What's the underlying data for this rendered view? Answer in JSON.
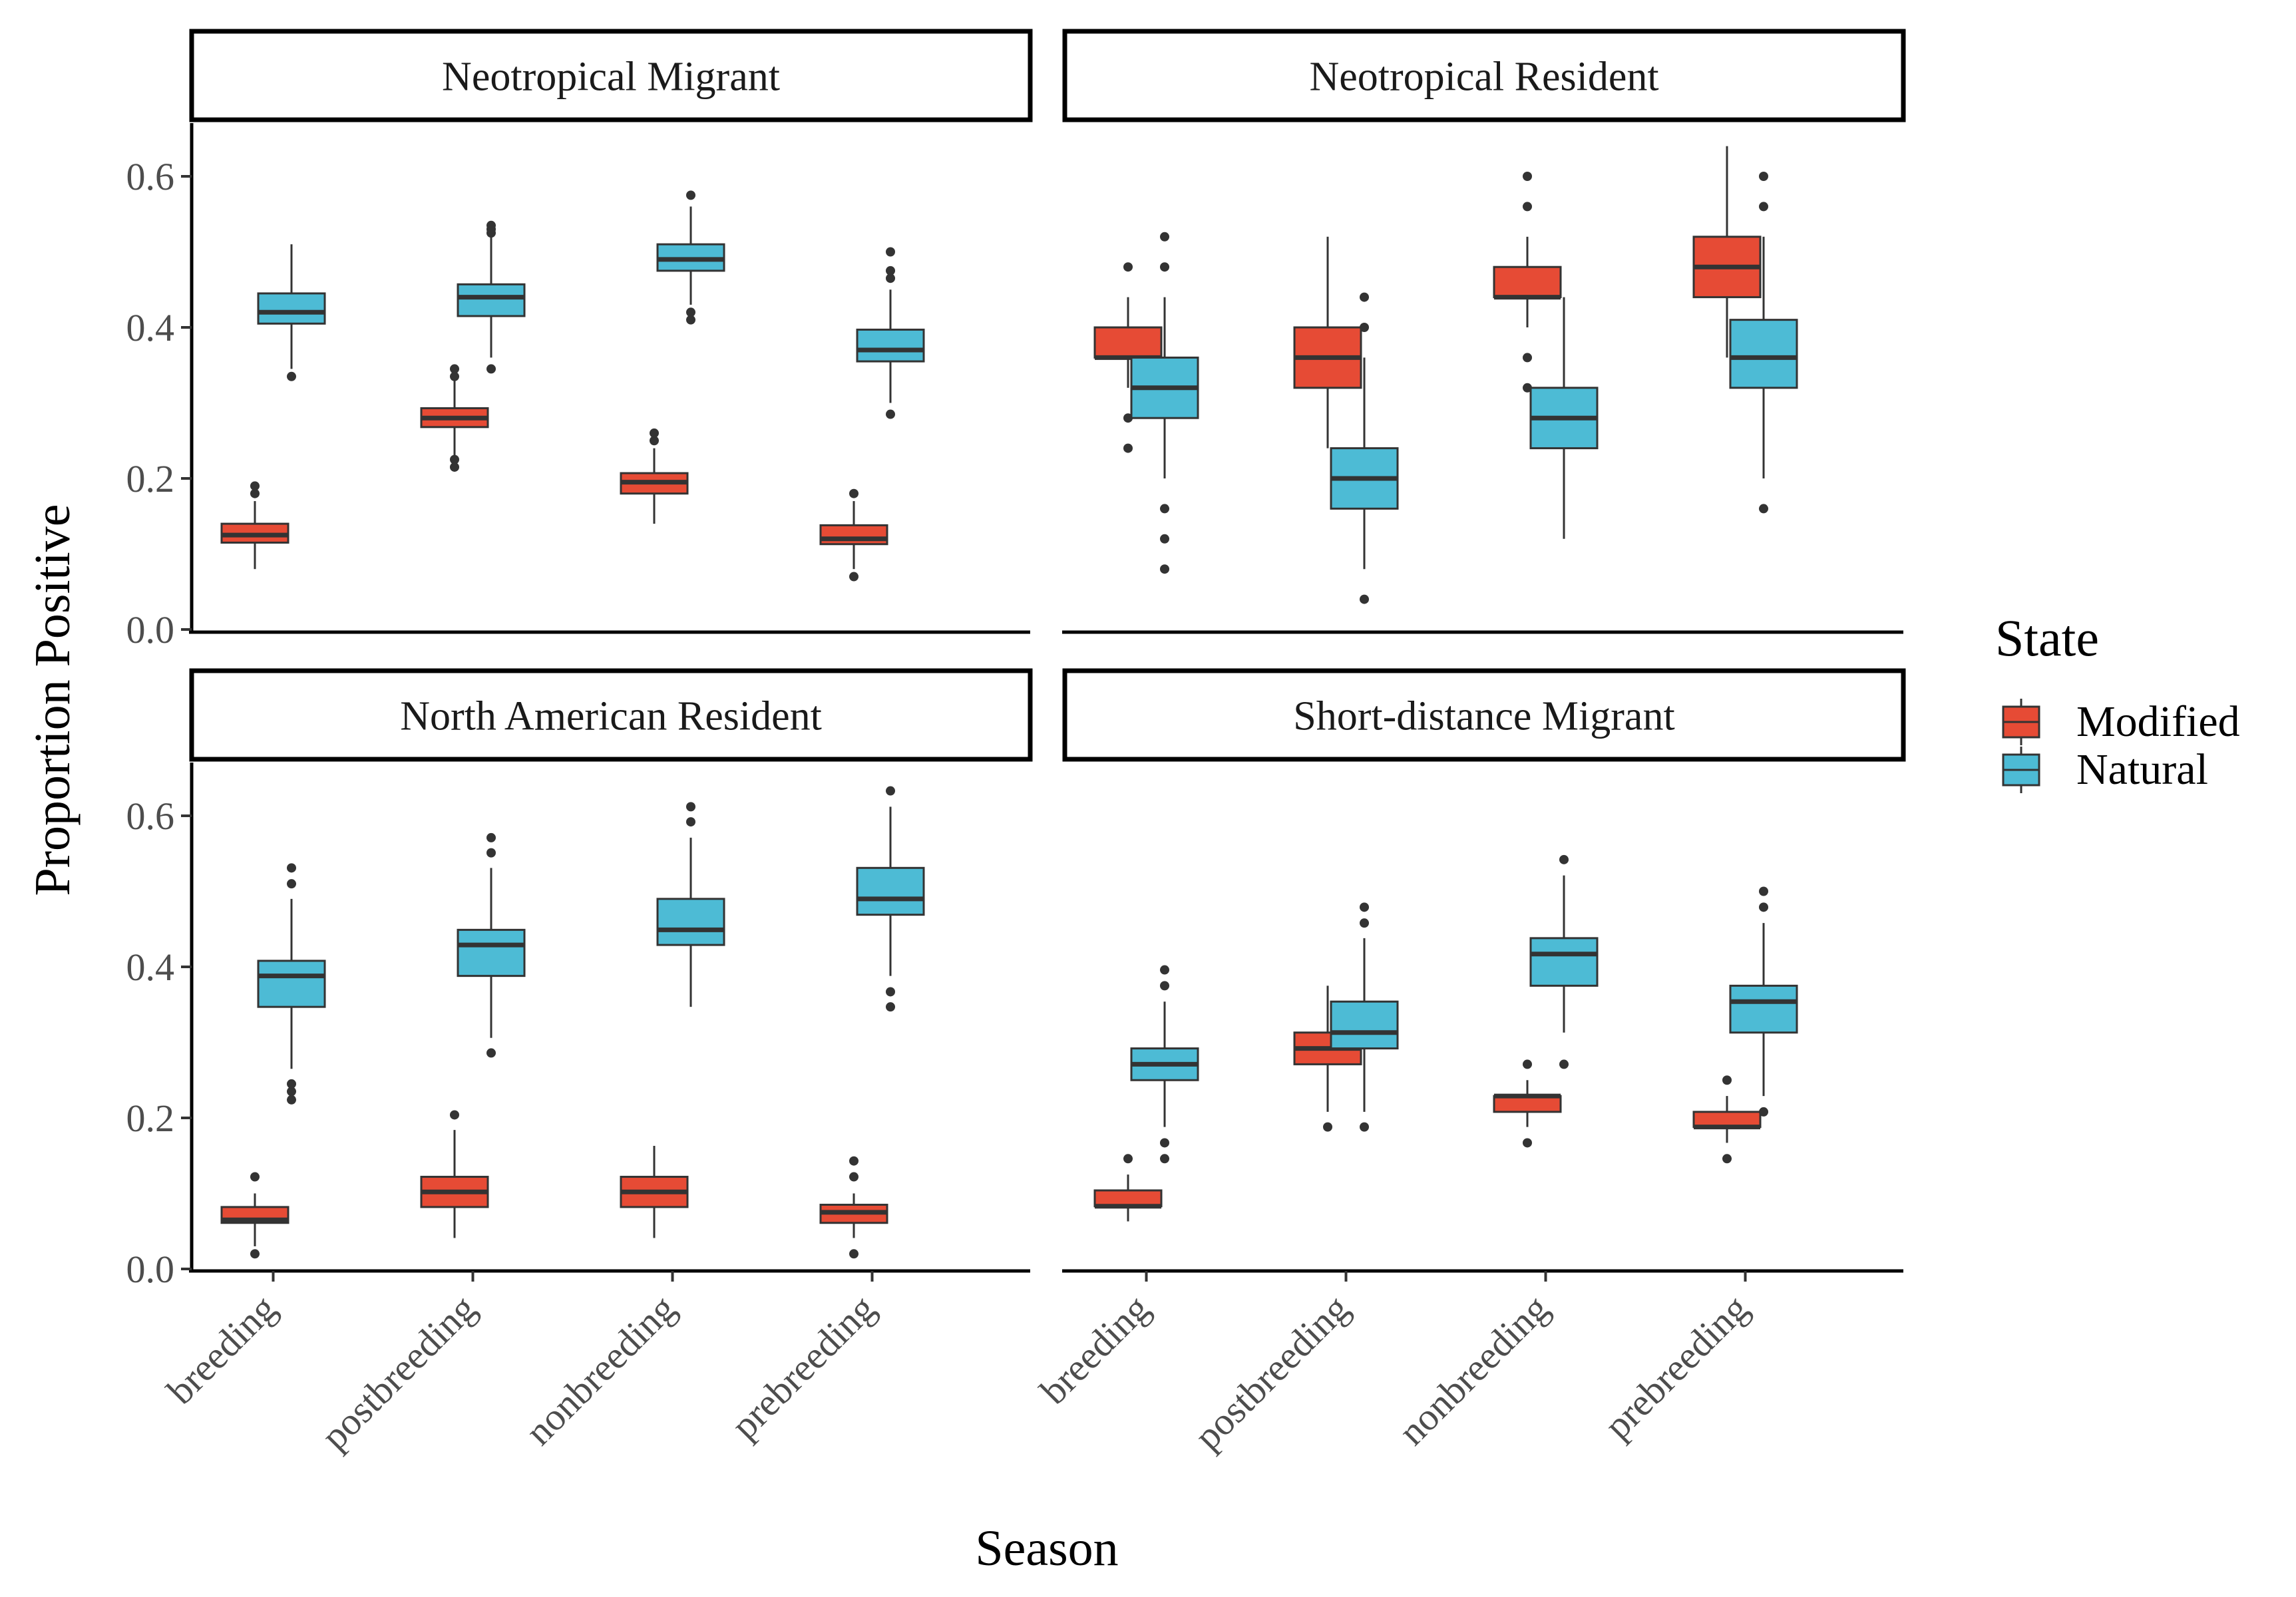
{
  "chart_data": {
    "type": "box",
    "xlabel": "Season",
    "ylabel": "Proportion Positive",
    "ylim": [
      0,
      0.68
    ],
    "yticks": [
      0.0,
      0.2,
      0.4,
      0.6
    ],
    "ytick_labels": [
      "0.0",
      "0.2",
      "0.4",
      "0.6"
    ],
    "categories": [
      "breeding",
      "postbreeding",
      "nonbreeding",
      "prebreeding"
    ],
    "legend": {
      "title": "State",
      "position": "right",
      "items": [
        {
          "label": "Modified",
          "color": "#E64B35"
        },
        {
          "label": "Natural",
          "color": "#4DBBD5"
        }
      ]
    },
    "grid": false,
    "panels": [
      {
        "title": "Neotropical Migrant",
        "boxes": [
          {
            "season": "breeding",
            "state": "Modified",
            "whisker_low": 0.08,
            "q1": 0.115,
            "median": 0.125,
            "q3": 0.14,
            "whisker_high": 0.17,
            "outliers": [
              0.18,
              0.19
            ]
          },
          {
            "season": "breeding",
            "state": "Natural",
            "whisker_low": 0.345,
            "q1": 0.405,
            "median": 0.42,
            "q3": 0.445,
            "whisker_high": 0.51,
            "outliers": [
              0.335
            ]
          },
          {
            "season": "postbreeding",
            "state": "Modified",
            "whisker_low": 0.23,
            "q1": 0.268,
            "median": 0.28,
            "q3": 0.293,
            "whisker_high": 0.33,
            "outliers": [
              0.215,
              0.225,
              0.335,
              0.345
            ]
          },
          {
            "season": "postbreeding",
            "state": "Natural",
            "whisker_low": 0.36,
            "q1": 0.415,
            "median": 0.44,
            "q3": 0.457,
            "whisker_high": 0.52,
            "outliers": [
              0.345,
              0.525,
              0.53,
              0.535
            ]
          },
          {
            "season": "nonbreeding",
            "state": "Modified",
            "whisker_low": 0.14,
            "q1": 0.18,
            "median": 0.195,
            "q3": 0.207,
            "whisker_high": 0.24,
            "outliers": [
              0.25,
              0.26
            ]
          },
          {
            "season": "nonbreeding",
            "state": "Natural",
            "whisker_low": 0.43,
            "q1": 0.475,
            "median": 0.49,
            "q3": 0.51,
            "whisker_high": 0.56,
            "outliers": [
              0.41,
              0.42,
              0.575
            ]
          },
          {
            "season": "prebreeding",
            "state": "Modified",
            "whisker_low": 0.08,
            "q1": 0.113,
            "median": 0.12,
            "q3": 0.138,
            "whisker_high": 0.17,
            "outliers": [
              0.07,
              0.18
            ]
          },
          {
            "season": "prebreeding",
            "state": "Natural",
            "whisker_low": 0.3,
            "q1": 0.355,
            "median": 0.37,
            "q3": 0.397,
            "whisker_high": 0.45,
            "outliers": [
              0.285,
              0.465,
              0.475,
              0.5
            ]
          }
        ]
      },
      {
        "title": "Neotropical Resident",
        "boxes": [
          {
            "season": "breeding",
            "state": "Modified",
            "whisker_low": 0.32,
            "q1": 0.36,
            "median": 0.36,
            "q3": 0.4,
            "whisker_high": 0.44,
            "outliers": [
              0.24,
              0.28,
              0.48
            ]
          },
          {
            "season": "breeding",
            "state": "Natural",
            "whisker_low": 0.2,
            "q1": 0.28,
            "median": 0.32,
            "q3": 0.36,
            "whisker_high": 0.44,
            "outliers": [
              0.08,
              0.12,
              0.16,
              0.48,
              0.52
            ]
          },
          {
            "season": "postbreeding",
            "state": "Modified",
            "whisker_low": 0.24,
            "q1": 0.32,
            "median": 0.36,
            "q3": 0.4,
            "whisker_high": 0.52,
            "outliers": []
          },
          {
            "season": "postbreeding",
            "state": "Natural",
            "whisker_low": 0.08,
            "q1": 0.16,
            "median": 0.2,
            "q3": 0.24,
            "whisker_high": 0.36,
            "outliers": [
              0.04,
              0.4,
              0.44
            ]
          },
          {
            "season": "nonbreeding",
            "state": "Modified",
            "whisker_low": 0.4,
            "q1": 0.44,
            "median": 0.44,
            "q3": 0.48,
            "whisker_high": 0.52,
            "outliers": [
              0.32,
              0.36,
              0.56,
              0.6
            ]
          },
          {
            "season": "nonbreeding",
            "state": "Natural",
            "whisker_low": 0.12,
            "q1": 0.24,
            "median": 0.28,
            "q3": 0.32,
            "whisker_high": 0.44,
            "outliers": []
          },
          {
            "season": "prebreeding",
            "state": "Modified",
            "whisker_low": 0.36,
            "q1": 0.44,
            "median": 0.48,
            "q3": 0.52,
            "whisker_high": 0.64,
            "outliers": []
          },
          {
            "season": "prebreeding",
            "state": "Natural",
            "whisker_low": 0.2,
            "q1": 0.32,
            "median": 0.36,
            "q3": 0.41,
            "whisker_high": 0.52,
            "outliers": [
              0.16,
              0.56,
              0.6
            ]
          }
        ]
      },
      {
        "title": "North American Resident",
        "boxes": [
          {
            "season": "breeding",
            "state": "Modified",
            "whisker_low": 0.03,
            "q1": 0.061,
            "median": 0.065,
            "q3": 0.082,
            "whisker_high": 0.1,
            "outliers": [
              0.02,
              0.122
            ]
          },
          {
            "season": "breeding",
            "state": "Natural",
            "whisker_low": 0.265,
            "q1": 0.347,
            "median": 0.388,
            "q3": 0.408,
            "whisker_high": 0.49,
            "outliers": [
              0.224,
              0.235,
              0.245,
              0.51,
              0.531
            ]
          },
          {
            "season": "postbreeding",
            "state": "Modified",
            "whisker_low": 0.041,
            "q1": 0.082,
            "median": 0.102,
            "q3": 0.122,
            "whisker_high": 0.184,
            "outliers": [
              0.204
            ]
          },
          {
            "season": "postbreeding",
            "state": "Natural",
            "whisker_low": 0.306,
            "q1": 0.388,
            "median": 0.429,
            "q3": 0.449,
            "whisker_high": 0.531,
            "outliers": [
              0.286,
              0.551,
              0.571
            ]
          },
          {
            "season": "nonbreeding",
            "state": "Modified",
            "whisker_low": 0.041,
            "q1": 0.082,
            "median": 0.102,
            "q3": 0.122,
            "whisker_high": 0.163,
            "outliers": []
          },
          {
            "season": "nonbreeding",
            "state": "Natural",
            "whisker_low": 0.347,
            "q1": 0.429,
            "median": 0.449,
            "q3": 0.49,
            "whisker_high": 0.571,
            "outliers": [
              0.592,
              0.612
            ]
          },
          {
            "season": "prebreeding",
            "state": "Modified",
            "whisker_low": 0.041,
            "q1": 0.061,
            "median": 0.075,
            "q3": 0.085,
            "whisker_high": 0.1,
            "outliers": [
              0.02,
              0.122,
              0.143
            ]
          },
          {
            "season": "prebreeding",
            "state": "Natural",
            "whisker_low": 0.388,
            "q1": 0.469,
            "median": 0.49,
            "q3": 0.531,
            "whisker_high": 0.612,
            "outliers": [
              0.347,
              0.367,
              0.633
            ]
          }
        ]
      },
      {
        "title": "Short-distance Migrant",
        "boxes": [
          {
            "season": "breeding",
            "state": "Modified",
            "whisker_low": 0.063,
            "q1": 0.083,
            "median": 0.083,
            "q3": 0.104,
            "whisker_high": 0.125,
            "outliers": [
              0.146
            ]
          },
          {
            "season": "breeding",
            "state": "Natural",
            "whisker_low": 0.188,
            "q1": 0.25,
            "median": 0.271,
            "q3": 0.292,
            "whisker_high": 0.354,
            "outliers": [
              0.146,
              0.167,
              0.375,
              0.396
            ]
          },
          {
            "season": "postbreeding",
            "state": "Modified",
            "whisker_low": 0.208,
            "q1": 0.271,
            "median": 0.292,
            "q3": 0.313,
            "whisker_high": 0.375,
            "outliers": [
              0.188
            ]
          },
          {
            "season": "postbreeding",
            "state": "Natural",
            "whisker_low": 0.208,
            "q1": 0.292,
            "median": 0.313,
            "q3": 0.354,
            "whisker_high": 0.438,
            "outliers": [
              0.188,
              0.458,
              0.479
            ]
          },
          {
            "season": "nonbreeding",
            "state": "Modified",
            "whisker_low": 0.188,
            "q1": 0.208,
            "median": 0.229,
            "q3": 0.229,
            "whisker_high": 0.25,
            "outliers": [
              0.167,
              0.271
            ]
          },
          {
            "season": "nonbreeding",
            "state": "Natural",
            "whisker_low": 0.313,
            "q1": 0.375,
            "median": 0.417,
            "q3": 0.438,
            "whisker_high": 0.521,
            "outliers": [
              0.271,
              0.542
            ]
          },
          {
            "season": "prebreeding",
            "state": "Modified",
            "whisker_low": 0.167,
            "q1": 0.188,
            "median": 0.188,
            "q3": 0.208,
            "whisker_high": 0.229,
            "outliers": [
              0.146,
              0.25
            ]
          },
          {
            "season": "prebreeding",
            "state": "Natural",
            "whisker_low": 0.229,
            "q1": 0.313,
            "median": 0.354,
            "q3": 0.375,
            "whisker_high": 0.458,
            "outliers": [
              0.208,
              0.479,
              0.5
            ]
          }
        ]
      }
    ]
  }
}
